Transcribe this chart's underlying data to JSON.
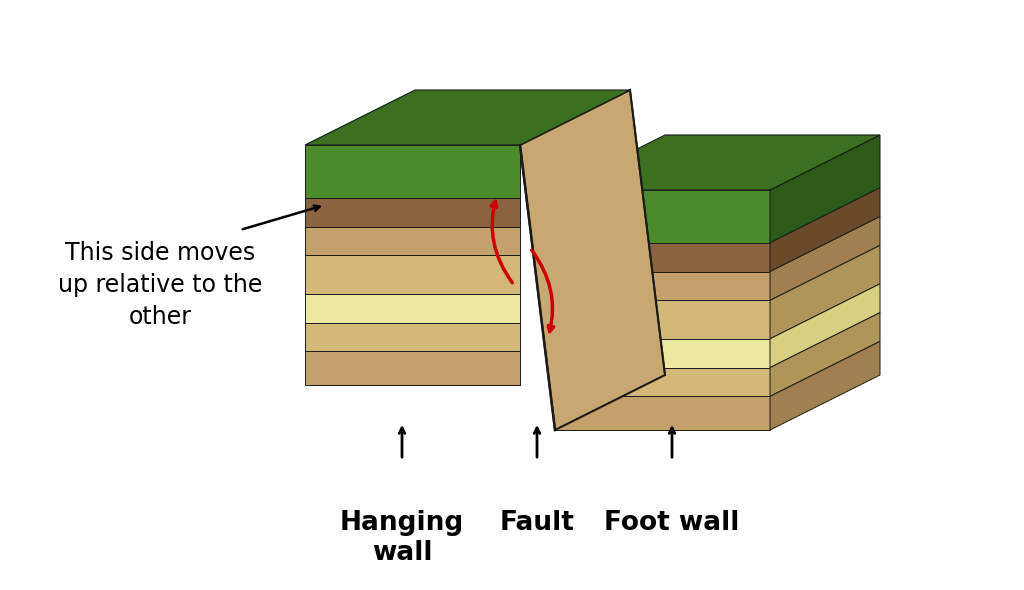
{
  "background_color": "#ffffff",
  "outline_color": "#1a1a1a",
  "fault_color": "#cc0000",
  "green_top": "#4a8c2a",
  "green_top_dark": "#3a7020",
  "green_side": "#2d5a18",
  "layers_front": [
    "#8B6340",
    "#C4A06A",
    "#D4B878",
    "#EDE8A0",
    "#D4B878",
    "#C4A06A",
    "#8B6340"
  ],
  "layers_side": [
    "#6a4a28",
    "#a08050",
    "#b09558",
    "#d8d080",
    "#b09558",
    "#a08050",
    "#6a4a28"
  ],
  "layers_top": [
    "#9a7050",
    "#c8a860",
    "#d8b868",
    "#eee098",
    "#d8b868",
    "#c8a860",
    "#9a7050"
  ],
  "fault_surface": "#c8a870",
  "label_fontsize": 19,
  "annot_fontsize": 17,
  "labels": [
    "Hanging\nwall",
    "Fault",
    "Foot wall"
  ],
  "annot": "This side moves\nup relative to the\nother"
}
